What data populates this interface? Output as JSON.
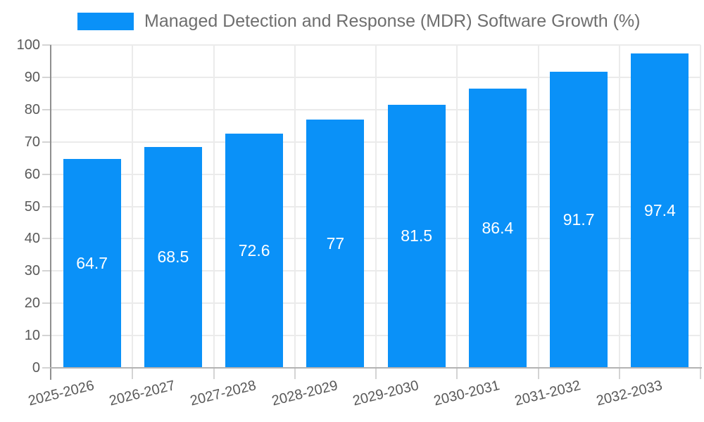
{
  "chart_data": {
    "type": "bar",
    "title": "Managed Detection and Response (MDR) Software Growth (%)",
    "categories": [
      "2025-2026",
      "2026-2027",
      "2027-2028",
      "2028-2029",
      "2029-2030",
      "2030-2031",
      "2031-2032",
      "2032-2033"
    ],
    "values": [
      64.7,
      68.5,
      72.6,
      77,
      81.5,
      86.4,
      91.7,
      97.4
    ],
    "value_labels": [
      "64.7",
      "68.5",
      "72.6",
      "77",
      "81.5",
      "86.4",
      "91.7",
      "97.4"
    ],
    "xlabel": "",
    "ylabel": "",
    "ylim": [
      0,
      100
    ],
    "yticks": [
      0,
      10,
      20,
      30,
      40,
      50,
      60,
      70,
      80,
      90,
      100
    ],
    "grid": true,
    "legend_position": "top",
    "x_label_rotation_deg": -14,
    "bar_color": "#0a91f8",
    "value_label_color": "#ffffff"
  }
}
